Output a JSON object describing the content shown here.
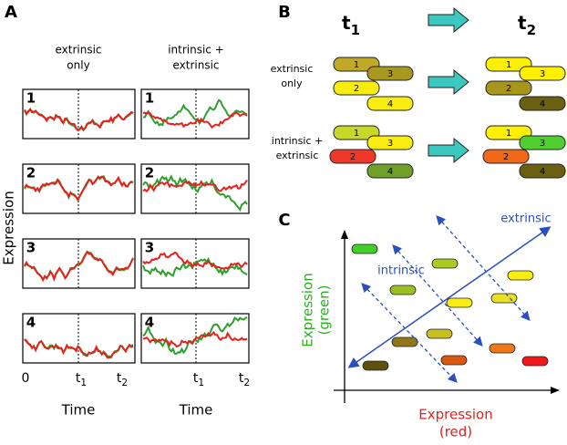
{
  "panel_labels": [
    "A",
    "B",
    "C"
  ],
  "panel_a": {
    "column_headers": [
      [
        "extrinsic",
        "only"
      ],
      [
        "intrinsic +",
        "extrinsic"
      ]
    ],
    "row_numbers": [
      "1",
      "2",
      "3",
      "4"
    ],
    "x_ticks": [
      {
        "main": "0"
      },
      {
        "main": "t",
        "sub": "1"
      },
      {
        "main": "t",
        "sub": "2"
      }
    ],
    "x_label": "Time",
    "y_label": "Expression"
  },
  "panel_b": {
    "time_labels": [
      {
        "main": "t",
        "sub": "1"
      },
      {
        "main": "t",
        "sub": "2"
      }
    ],
    "row_labels": [
      [
        "extrinsic",
        "only"
      ],
      [
        "intrinsic +",
        "extrinsic"
      ]
    ],
    "cell_numbers": [
      "1",
      "2",
      "3",
      "4"
    ]
  },
  "panel_c": {
    "arrow_labels": [
      "extrinsic",
      "intrinsic"
    ],
    "y_label": [
      "Expression",
      "(green)"
    ],
    "x_label": [
      "Expression",
      "(red)"
    ]
  }
}
